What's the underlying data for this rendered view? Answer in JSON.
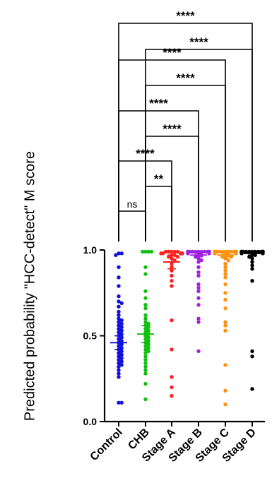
{
  "chart_data": {
    "type": "scatter",
    "ylabel": "Predicted probability \"HCC-detect\" M score",
    "ylim": [
      0.0,
      1.0
    ],
    "yticks": [
      "0.0",
      "0.5",
      "1.0"
    ],
    "categories": [
      "Control",
      "CHB",
      "Stage A",
      "Stage B",
      "Stage C",
      "Stage D"
    ],
    "series": [
      {
        "color": "#1010e0",
        "mean": 0.46,
        "sem": 0.04,
        "values": [
          0.98,
          0.97,
          0.98,
          0.9,
          0.84,
          0.79,
          0.73,
          0.7,
          0.69,
          0.67,
          0.64,
          0.62,
          0.6,
          0.59,
          0.58,
          0.57,
          0.56,
          0.55,
          0.54,
          0.53,
          0.52,
          0.51,
          0.5,
          0.49,
          0.48,
          0.47,
          0.46,
          0.45,
          0.44,
          0.43,
          0.42,
          0.41,
          0.4,
          0.39,
          0.38,
          0.37,
          0.36,
          0.35,
          0.34,
          0.33,
          0.32,
          0.3,
          0.28,
          0.26,
          0.11,
          0.11
        ]
      },
      {
        "color": "#10c010",
        "mean": 0.51,
        "sem": 0.05,
        "values": [
          0.99,
          0.99,
          0.99,
          0.99,
          0.9,
          0.86,
          0.76,
          0.72,
          0.68,
          0.66,
          0.62,
          0.6,
          0.58,
          0.57,
          0.56,
          0.55,
          0.54,
          0.53,
          0.52,
          0.51,
          0.5,
          0.49,
          0.48,
          0.47,
          0.46,
          0.45,
          0.44,
          0.43,
          0.42,
          0.41,
          0.4,
          0.38,
          0.36,
          0.34,
          0.32,
          0.3,
          0.28,
          0.22,
          0.13
        ]
      },
      {
        "color": "#ff2020",
        "mean": 0.93,
        "sem": 0.04,
        "values": [
          0.99,
          0.99,
          0.99,
          0.99,
          0.99,
          0.98,
          0.98,
          0.98,
          0.98,
          0.98,
          0.97,
          0.97,
          0.96,
          0.96,
          0.95,
          0.94,
          0.92,
          0.9,
          0.88,
          0.85,
          0.82,
          0.79,
          0.59,
          0.42,
          0.26,
          0.2,
          0.15
        ]
      },
      {
        "color": "#a020e0",
        "mean": 0.97,
        "sem": 0.01,
        "values": [
          0.99,
          0.99,
          0.99,
          0.99,
          0.99,
          0.99,
          0.99,
          0.99,
          0.99,
          0.99,
          0.99,
          0.99,
          0.99,
          0.99,
          0.98,
          0.98,
          0.98,
          0.98,
          0.98,
          0.97,
          0.97,
          0.96,
          0.95,
          0.94,
          0.93,
          0.9,
          0.87,
          0.85,
          0.8,
          0.78,
          0.76,
          0.72,
          0.68,
          0.6,
          0.58,
          0.41
        ]
      },
      {
        "color": "#ff9010",
        "mean": 0.97,
        "sem": 0.01,
        "values": [
          0.99,
          0.99,
          0.99,
          0.99,
          0.99,
          0.99,
          0.99,
          0.99,
          0.99,
          0.99,
          0.99,
          0.99,
          0.99,
          0.99,
          0.99,
          0.99,
          0.98,
          0.98,
          0.98,
          0.98,
          0.98,
          0.97,
          0.97,
          0.96,
          0.96,
          0.95,
          0.94,
          0.92,
          0.9,
          0.88,
          0.86,
          0.84,
          0.8,
          0.75,
          0.71,
          0.66,
          0.58,
          0.56,
          0.53,
          0.33,
          0.18,
          0.1
        ]
      },
      {
        "color": "#000000",
        "mean": 0.98,
        "sem": 0.01,
        "values": [
          0.99,
          0.99,
          0.99,
          0.99,
          0.99,
          0.99,
          0.99,
          0.99,
          0.99,
          0.99,
          0.99,
          0.99,
          0.99,
          0.99,
          0.99,
          0.99,
          0.99,
          0.99,
          0.98,
          0.98,
          0.98,
          0.98,
          0.97,
          0.97,
          0.96,
          0.95,
          0.93,
          0.91,
          0.89,
          0.82,
          0.41,
          0.38,
          0.19
        ]
      }
    ],
    "comparisons": [
      {
        "from": 0,
        "to": 1,
        "label": "ns"
      },
      {
        "from": 1,
        "to": 2,
        "label": "**"
      },
      {
        "from": 0,
        "to": 2,
        "label": "****"
      },
      {
        "from": 1,
        "to": 3,
        "label": "****"
      },
      {
        "from": 0,
        "to": 3,
        "label": "****"
      },
      {
        "from": 1,
        "to": 4,
        "label": "****"
      },
      {
        "from": 0,
        "to": 4,
        "label": "****"
      },
      {
        "from": 1,
        "to": 5,
        "label": "****"
      },
      {
        "from": 0,
        "to": 5,
        "label": "****"
      }
    ]
  }
}
